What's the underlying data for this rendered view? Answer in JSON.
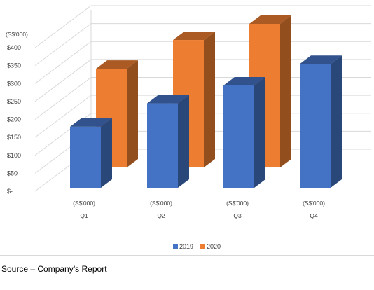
{
  "chart_data": {
    "type": "bar",
    "variant": "3d-column",
    "unit_label": "(S$'000)",
    "categories": [
      "Q1",
      "Q2",
      "Q3",
      "Q4"
    ],
    "category_unit_labels": [
      "(S$'000)",
      "(S$'000)",
      "(S$'000)",
      "(S$'000)"
    ],
    "series": [
      {
        "name": "2019",
        "values": [
          170,
          235,
          285,
          345
        ],
        "color": "#4472c4"
      },
      {
        "name": "2020",
        "values": [
          275,
          355,
          400,
          null
        ],
        "color": "#ed7d31"
      }
    ],
    "yticks": [
      "$-",
      "$50",
      "$100",
      "$150",
      "$200",
      "$250",
      "$300",
      "$350",
      "$400"
    ],
    "ylim": [
      0,
      400
    ],
    "grid": true,
    "legend_position": "bottom"
  },
  "footer": {
    "source": "Source – Company’s Report"
  }
}
